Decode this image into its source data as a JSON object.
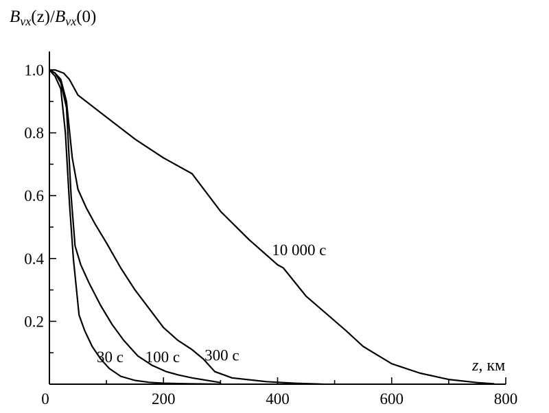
{
  "chart_data": {
    "type": "line",
    "ylabel": "B_vx(z)/B_vx(0)",
    "ylabel_parts": {
      "b1": "B",
      "s1": "vx",
      "mid": "(z)/",
      "b2": "B",
      "s2": "vx",
      "end": "(0)"
    },
    "xlabel_var": "z",
    "xlabel_unit": ", км",
    "xlim": [
      0,
      800
    ],
    "ylim": [
      0,
      1.0
    ],
    "x_ticks": [
      0,
      200,
      400,
      600,
      800
    ],
    "y_ticks": [
      0.2,
      0.4,
      0.6,
      0.8,
      1.0
    ],
    "x_tick_labels": [
      "0",
      "200",
      "400",
      "600",
      "800"
    ],
    "y_tick_labels": [
      "0.2",
      "0.4",
      "0.6",
      "0.8",
      "1.0"
    ],
    "series": [
      {
        "name": "30 с",
        "x": [
          0,
          10,
          20,
          28,
          35,
          42,
          52,
          62,
          75,
          90,
          105,
          125,
          150,
          175,
          200,
          250,
          300
        ],
        "y": [
          1.0,
          0.98,
          0.94,
          0.8,
          0.58,
          0.4,
          0.22,
          0.17,
          0.12,
          0.08,
          0.05,
          0.025,
          0.012,
          0.006,
          0.003,
          0.001,
          0.0
        ]
      },
      {
        "name": "100 с",
        "x": [
          0,
          10,
          20,
          30,
          38,
          45,
          55,
          70,
          90,
          110,
          130,
          155,
          180,
          205,
          225,
          250,
          300
        ],
        "y": [
          1.0,
          0.99,
          0.96,
          0.88,
          0.6,
          0.44,
          0.38,
          0.32,
          0.25,
          0.19,
          0.14,
          0.09,
          0.06,
          0.04,
          0.03,
          0.02,
          0.005
        ]
      },
      {
        "name": "300 с",
        "x": [
          0,
          10,
          20,
          30,
          40,
          50,
          65,
          80,
          100,
          125,
          150,
          175,
          200,
          225,
          250,
          270,
          290,
          320,
          380,
          430,
          480
        ],
        "y": [
          1.0,
          0.99,
          0.97,
          0.9,
          0.72,
          0.62,
          0.56,
          0.51,
          0.45,
          0.37,
          0.3,
          0.24,
          0.18,
          0.14,
          0.11,
          0.08,
          0.04,
          0.02,
          0.008,
          0.003,
          0.0
        ]
      },
      {
        "name": "10 000 с",
        "x": [
          0,
          10,
          25,
          35,
          50,
          100,
          150,
          200,
          250,
          300,
          350,
          400,
          410,
          450,
          520,
          550,
          600,
          650,
          700,
          750,
          780
        ],
        "y": [
          1.0,
          1.0,
          0.99,
          0.97,
          0.92,
          0.85,
          0.78,
          0.72,
          0.67,
          0.55,
          0.46,
          0.38,
          0.37,
          0.28,
          0.17,
          0.12,
          0.065,
          0.035,
          0.015,
          0.005,
          0.001
        ]
      }
    ]
  }
}
